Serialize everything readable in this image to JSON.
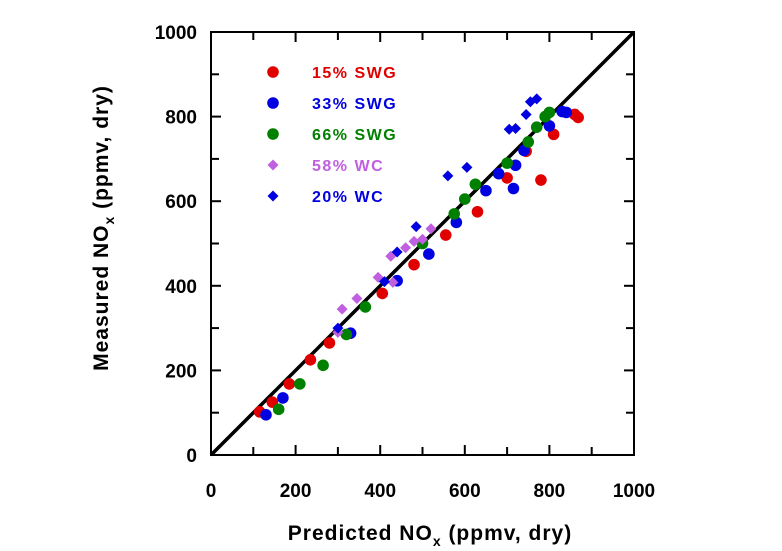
{
  "chart_data": {
    "type": "scatter",
    "xlabel_main": "Predicted NO",
    "xlabel_sub": "x",
    "xlabel_tail": " (ppmv, dry)",
    "ylabel_main": "Measured NO",
    "ylabel_sub": "x",
    "ylabel_tail": " (ppmv, dry)",
    "xlim": [
      0,
      1000
    ],
    "ylim": [
      0,
      1000
    ],
    "xticks": [
      "0",
      "200",
      "400",
      "600",
      "800",
      "1000"
    ],
    "yticks": [
      "0",
      "200",
      "400",
      "600",
      "800",
      "1000"
    ],
    "grid": false,
    "legend_position": "top-left",
    "reference_line": {
      "type": "parity",
      "color": "#000000"
    },
    "series": [
      {
        "name": "15% SWG",
        "marker": "circle",
        "color": "#e00000",
        "points": [
          [
            115,
            102
          ],
          [
            145,
            125
          ],
          [
            185,
            168
          ],
          [
            235,
            225
          ],
          [
            280,
            265
          ],
          [
            405,
            382
          ],
          [
            480,
            450
          ],
          [
            555,
            520
          ],
          [
            630,
            575
          ],
          [
            700,
            655
          ],
          [
            745,
            718
          ],
          [
            780,
            650
          ],
          [
            810,
            758
          ],
          [
            860,
            805
          ],
          [
            868,
            798
          ]
        ]
      },
      {
        "name": "33% SWG",
        "marker": "circle",
        "color": "#0000e0",
        "points": [
          [
            130,
            95
          ],
          [
            170,
            135
          ],
          [
            330,
            288
          ],
          [
            440,
            412
          ],
          [
            515,
            475
          ],
          [
            580,
            550
          ],
          [
            650,
            625
          ],
          [
            680,
            665
          ],
          [
            715,
            630
          ],
          [
            720,
            685
          ],
          [
            740,
            720
          ],
          [
            800,
            778
          ],
          [
            830,
            812
          ],
          [
            840,
            810
          ]
        ]
      },
      {
        "name": "66% SWG",
        "marker": "circle",
        "color": "#008000",
        "points": [
          [
            160,
            108
          ],
          [
            210,
            168
          ],
          [
            265,
            212
          ],
          [
            320,
            285
          ],
          [
            365,
            350
          ],
          [
            500,
            500
          ],
          [
            575,
            570
          ],
          [
            600,
            605
          ],
          [
            625,
            640
          ],
          [
            700,
            690
          ],
          [
            750,
            740
          ],
          [
            770,
            775
          ],
          [
            790,
            800
          ],
          [
            800,
            810
          ]
        ]
      },
      {
        "name": "58% WC",
        "marker": "diamond",
        "color": "#c060e0",
        "points": [
          [
            300,
            290
          ],
          [
            310,
            345
          ],
          [
            345,
            370
          ],
          [
            395,
            420
          ],
          [
            425,
            470
          ],
          [
            430,
            408
          ],
          [
            460,
            490
          ],
          [
            480,
            505
          ],
          [
            500,
            510
          ],
          [
            520,
            535
          ]
        ]
      },
      {
        "name": "20% WC",
        "marker": "diamond",
        "color": "#0000e0",
        "points": [
          [
            300,
            300
          ],
          [
            410,
            410
          ],
          [
            440,
            480
          ],
          [
            485,
            540
          ],
          [
            560,
            660
          ],
          [
            605,
            680
          ],
          [
            680,
            665
          ],
          [
            705,
            770
          ],
          [
            720,
            772
          ],
          [
            745,
            805
          ],
          [
            755,
            835
          ],
          [
            770,
            842
          ]
        ]
      }
    ]
  }
}
